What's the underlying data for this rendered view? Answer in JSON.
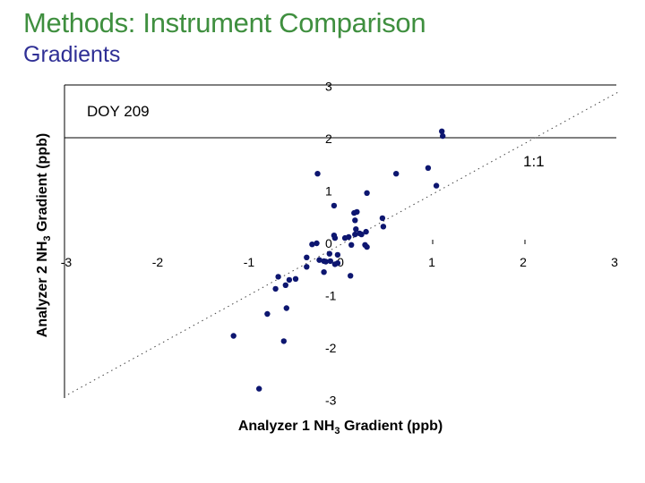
{
  "slide": {
    "title": "Methods: Instrument Comparison",
    "subtitle": "Gradients"
  },
  "chart_data": {
    "type": "scatter",
    "title": "DOY 209",
    "xlabel": "Analyzer 1 NH3 Gradient (ppb)",
    "ylabel": "Analyzer 2 NH3 Gradient (ppb)",
    "xlim": [
      -3,
      3
    ],
    "ylim": [
      -3,
      3
    ],
    "x_ticks": [
      "-3",
      "-2",
      "-1",
      "0",
      "1",
      "2",
      "3"
    ],
    "y_ticks": [
      "3",
      "2",
      "1",
      "0",
      "-1",
      "-2",
      "-3"
    ],
    "grid": "horizontal lines at y=3 and y=2",
    "annotations": [
      {
        "text": "1:1",
        "note": "dotted 1:1 reference line"
      }
    ],
    "marker_color": "#0d1670",
    "series": [
      {
        "name": "DOY 209",
        "points": [
          [
            -0.25,
            1.33
          ],
          [
            0.61,
            1.33
          ],
          [
            0.96,
            1.44
          ],
          [
            1.11,
            2.14
          ],
          [
            1.12,
            2.05
          ],
          [
            1.05,
            1.1
          ],
          [
            0.29,
            0.96
          ],
          [
            -0.07,
            0.72
          ],
          [
            0.15,
            0.58
          ],
          [
            0.18,
            0.6
          ],
          [
            0.16,
            0.44
          ],
          [
            0.46,
            0.48
          ],
          [
            0.47,
            0.32
          ],
          [
            -0.26,
            0.0
          ],
          [
            -0.31,
            -0.02
          ],
          [
            -0.07,
            0.15
          ],
          [
            -0.06,
            0.1
          ],
          [
            0.05,
            0.1
          ],
          [
            0.16,
            0.17
          ],
          [
            0.23,
            0.17
          ],
          [
            0.12,
            -0.03
          ],
          [
            0.27,
            -0.03
          ],
          [
            0.28,
            0.22
          ],
          [
            0.17,
            0.27
          ],
          [
            0.09,
            0.12
          ],
          [
            0.21,
            0.19
          ],
          [
            0.29,
            -0.07
          ],
          [
            -0.37,
            -0.27
          ],
          [
            -0.23,
            -0.32
          ],
          [
            -0.18,
            -0.34
          ],
          [
            -0.16,
            -0.35
          ],
          [
            -0.11,
            -0.34
          ],
          [
            -0.03,
            -0.38
          ],
          [
            -0.12,
            -0.2
          ],
          [
            -0.06,
            -0.4
          ],
          [
            -0.37,
            -0.45
          ],
          [
            -0.18,
            -0.55
          ],
          [
            0.11,
            -0.62
          ],
          [
            -0.03,
            -0.22
          ],
          [
            -0.56,
            -0.7
          ],
          [
            -0.68,
            -0.64
          ],
          [
            -0.6,
            -0.8
          ],
          [
            -0.49,
            -0.68
          ],
          [
            -0.71,
            -0.87
          ],
          [
            -0.8,
            -1.35
          ],
          [
            -0.59,
            -1.24
          ],
          [
            -1.17,
            -1.77
          ],
          [
            -0.62,
            -1.87
          ],
          [
            -0.89,
            -2.78
          ]
        ]
      }
    ]
  }
}
